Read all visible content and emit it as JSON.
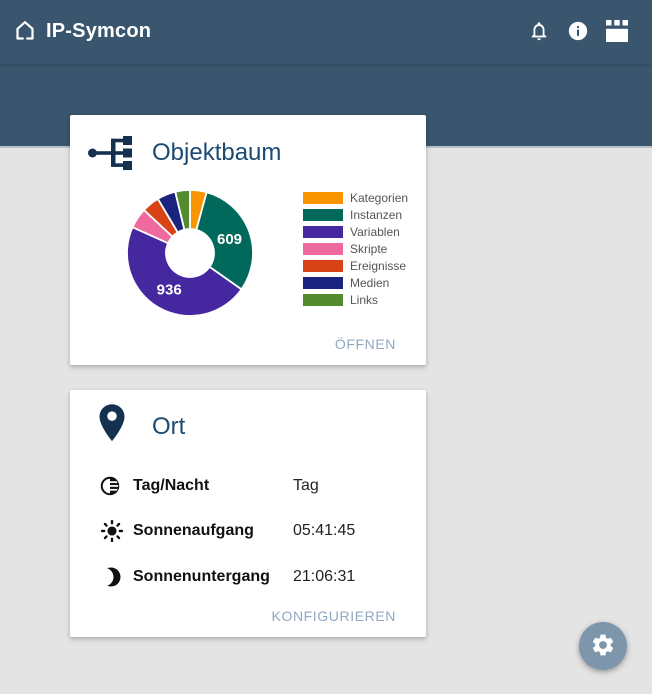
{
  "app": {
    "title": "IP-Symcon"
  },
  "header": {
    "icons": [
      "notifications-bell",
      "info",
      "console-apps"
    ]
  },
  "colors": {
    "band": "#3A566F",
    "band-divider": "#B6C0CA",
    "bg": "#E4E4E4",
    "card-title": "#1B4A73",
    "icon-navy": "#14324F",
    "action-link": "#8FA8C2",
    "legend-text": "#555555",
    "row-label": "#111111",
    "row-value": "#222222",
    "fab": "#7E96AB"
  },
  "cards": {
    "objektbaum": {
      "title": "Objektbaum",
      "action_label": "ÖFFNEN"
    },
    "ort": {
      "title": "Ort",
      "action_label": "KONFIGURIEREN",
      "rows": [
        {
          "icon": "day-night-icon",
          "label": "Tag/Nacht",
          "value": "Tag"
        },
        {
          "icon": "sunrise-icon",
          "label": "Sonnenaufgang",
          "value": "05:41:45"
        },
        {
          "icon": "moon-icon",
          "label": "Sonnenuntergang",
          "value": "21:06:31"
        }
      ]
    }
  },
  "chart_data": {
    "type": "pie",
    "subtype": "donut",
    "title": "Objektbaum",
    "legend_position": "right",
    "categories": [
      "Kategorien",
      "Instanzen",
      "Variablen",
      "Skripte",
      "Ereignisse",
      "Medien",
      "Links"
    ],
    "values": [
      85,
      609,
      936,
      105,
      90,
      95,
      75
    ],
    "colors": [
      "#F99500",
      "#00695C",
      "#4527A0",
      "#EE6A9E",
      "#D84315",
      "#1A237E",
      "#558B2F"
    ],
    "data_labels": [
      "",
      "609",
      "936",
      "",
      "",
      "",
      ""
    ]
  }
}
